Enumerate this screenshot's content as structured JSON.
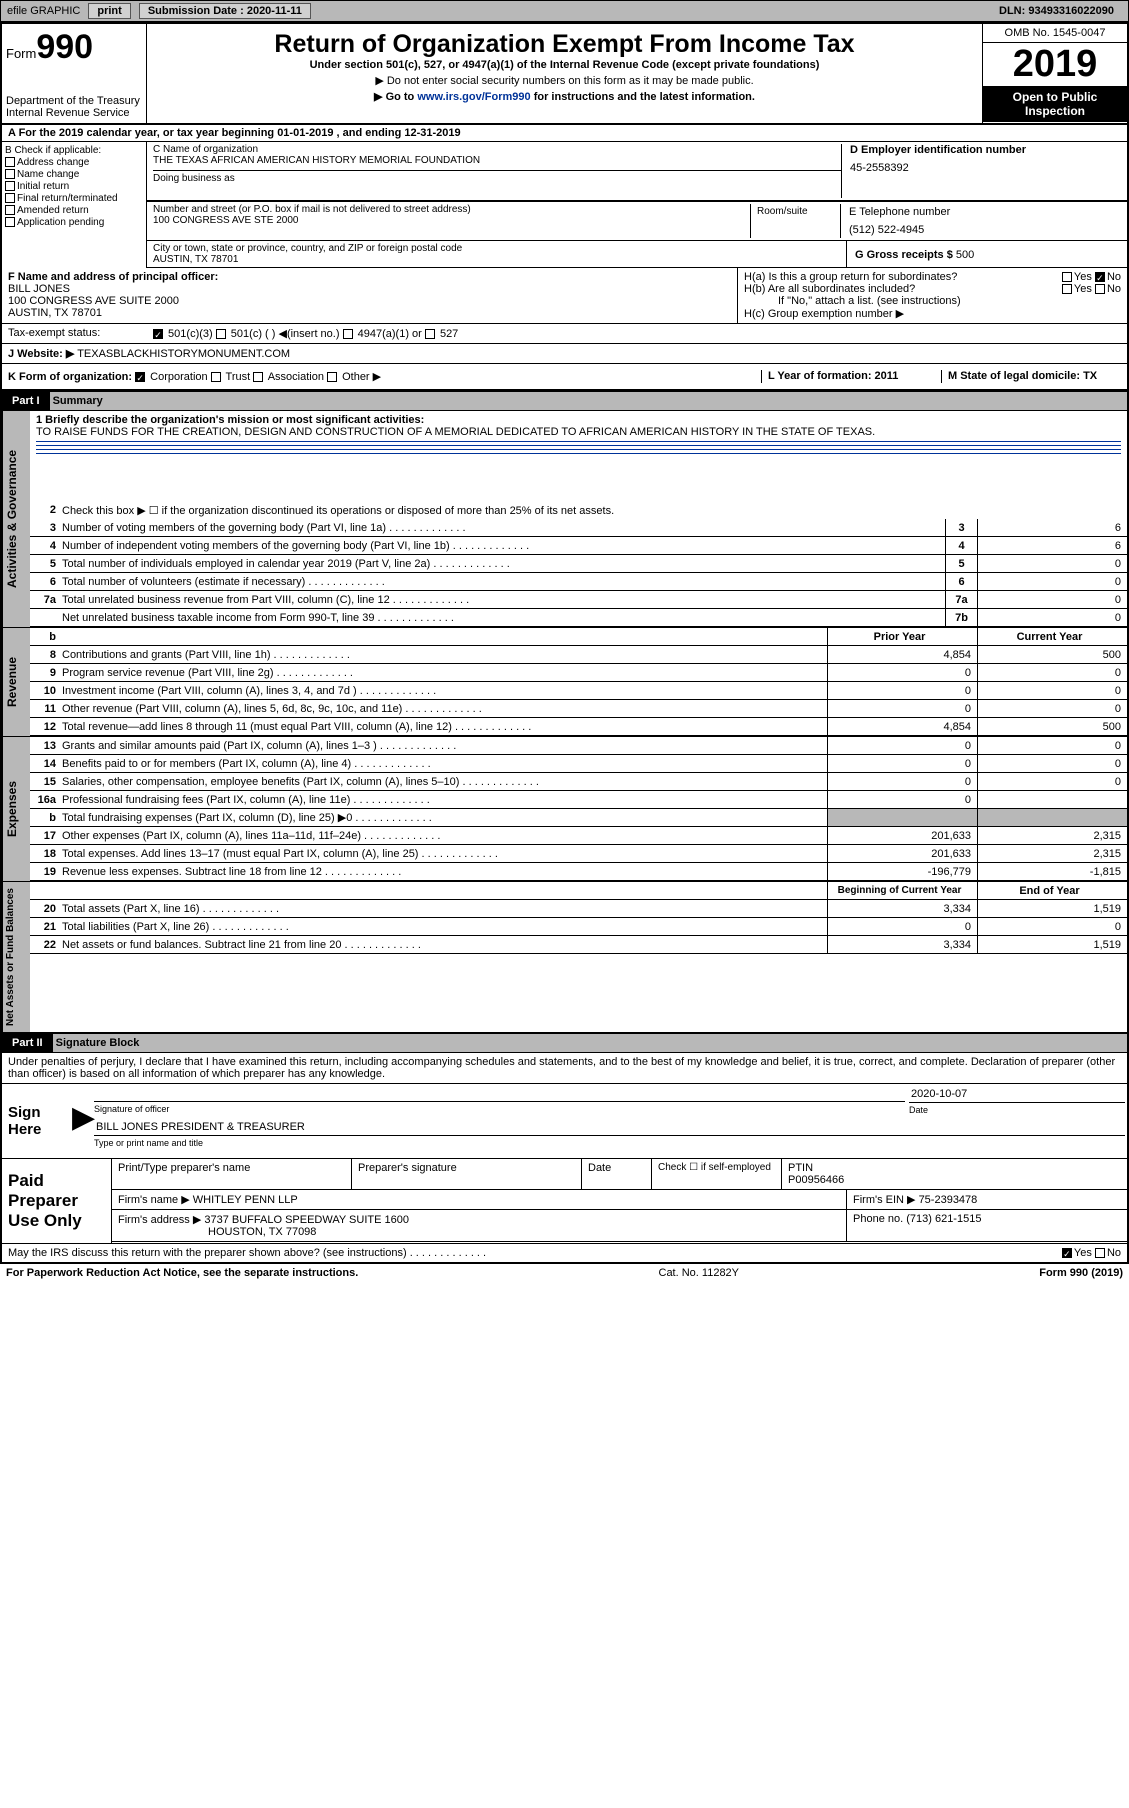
{
  "topbar": {
    "efile": "efile GRAPHIC",
    "print": "print",
    "subdate_label": "Submission Date : 2020-11-11",
    "dln": "DLN: 93493316022090"
  },
  "header": {
    "form_prefix": "Form",
    "form_num": "990",
    "dept": "Department of the Treasury\nInternal Revenue Service",
    "title": "Return of Organization Exempt From Income Tax",
    "subtitle": "Under section 501(c), 527, or 4947(a)(1) of the Internal Revenue Code (except private foundations)",
    "note1": "▶ Do not enter social security numbers on this form as it may be made public.",
    "note2_pre": "▶ Go to ",
    "note2_link": "www.irs.gov/Form990",
    "note2_post": " for instructions and the latest information.",
    "omb": "OMB No. 1545-0047",
    "year": "2019",
    "open": "Open to Public Inspection"
  },
  "line_a": "A For the 2019 calendar year, or tax year beginning 01-01-2019    , and ending 12-31-2019",
  "box_b": {
    "label": "B Check if applicable:",
    "items": [
      "Address change",
      "Name change",
      "Initial return",
      "Final return/terminated",
      "Amended return",
      "Application pending"
    ]
  },
  "box_c": {
    "name_label": "C Name of organization",
    "name": "THE TEXAS AFRICAN AMERICAN HISTORY MEMORIAL FOUNDATION",
    "dba_label": "Doing business as",
    "addr_label": "Number and street (or P.O. box if mail is not delivered to street address)",
    "addr": "100 CONGRESS AVE STE 2000",
    "room_label": "Room/suite",
    "city_label": "City or town, state or province, country, and ZIP or foreign postal code",
    "city": "AUSTIN, TX  78701"
  },
  "box_d": {
    "label": "D Employer identification number",
    "val": "45-2558392"
  },
  "box_e": {
    "label": "E Telephone number",
    "val": "(512) 522-4945"
  },
  "box_g": {
    "label": "G Gross receipts $",
    "val": "500"
  },
  "box_f": {
    "label": "F  Name and address of principal officer:",
    "name": "BILL JONES",
    "addr": "100 CONGRESS AVE SUITE 2000",
    "city": "AUSTIN, TX  78701"
  },
  "box_h": {
    "a": "H(a)  Is this a group return for subordinates?",
    "b": "H(b)  Are all subordinates included?",
    "b_note": "If \"No,\" attach a list. (see instructions)",
    "c": "H(c)  Group exemption number ▶"
  },
  "tax_status": "Tax-exempt status:",
  "website_label": "J     Website: ▶",
  "website": "TEXASBLACKHISTORYMONUMENT.COM",
  "row_k": "K Form of organization:",
  "row_l": "L Year of formation: 2011",
  "row_m": "M State of legal domicile: TX",
  "part1": {
    "hdr": "Part I",
    "title": "Summary"
  },
  "mission_label": "1  Briefly describe the organization's mission or most significant activities:",
  "mission": "TO RAISE FUNDS FOR THE CREATION, DESIGN AND CONSTRUCTION OF A MEMORIAL DEDICATED TO AFRICAN AMERICAN HISTORY IN THE STATE OF TEXAS.",
  "side_labels": {
    "ag": "Activities & Governance",
    "rev": "Revenue",
    "exp": "Expenses",
    "na": "Net Assets or Fund Balances"
  },
  "lines_gov": [
    {
      "n": "2",
      "t": "Check this box ▶ ☐  if the organization discontinued its operations or disposed of more than 25% of its net assets."
    },
    {
      "n": "3",
      "t": "Number of voting members of the governing body (Part VI, line 1a)",
      "b": "3",
      "v": "6"
    },
    {
      "n": "4",
      "t": "Number of independent voting members of the governing body (Part VI, line 1b)",
      "b": "4",
      "v": "6"
    },
    {
      "n": "5",
      "t": "Total number of individuals employed in calendar year 2019 (Part V, line 2a)",
      "b": "5",
      "v": "0"
    },
    {
      "n": "6",
      "t": "Total number of volunteers (estimate if necessary)",
      "b": "6",
      "v": "0"
    },
    {
      "n": "7a",
      "t": "Total unrelated business revenue from Part VIII, column (C), line 12",
      "b": "7a",
      "v": "0"
    },
    {
      "n": "",
      "t": "Net unrelated business taxable income from Form 990-T, line 39",
      "b": "7b",
      "v": "0"
    }
  ],
  "col_hdrs": {
    "prior": "Prior Year",
    "current": "Current Year"
  },
  "lines_rev": [
    {
      "n": "8",
      "t": "Contributions and grants (Part VIII, line 1h)",
      "p": "4,854",
      "c": "500"
    },
    {
      "n": "9",
      "t": "Program service revenue (Part VIII, line 2g)",
      "p": "0",
      "c": "0"
    },
    {
      "n": "10",
      "t": "Investment income (Part VIII, column (A), lines 3, 4, and 7d )",
      "p": "0",
      "c": "0"
    },
    {
      "n": "11",
      "t": "Other revenue (Part VIII, column (A), lines 5, 6d, 8c, 9c, 10c, and 11e)",
      "p": "0",
      "c": "0"
    },
    {
      "n": "12",
      "t": "Total revenue—add lines 8 through 11 (must equal Part VIII, column (A), line 12)",
      "p": "4,854",
      "c": "500"
    }
  ],
  "lines_exp": [
    {
      "n": "13",
      "t": "Grants and similar amounts paid (Part IX, column (A), lines 1–3 )",
      "p": "0",
      "c": "0"
    },
    {
      "n": "14",
      "t": "Benefits paid to or for members (Part IX, column (A), line 4)",
      "p": "0",
      "c": "0"
    },
    {
      "n": "15",
      "t": "Salaries, other compensation, employee benefits (Part IX, column (A), lines 5–10)",
      "p": "0",
      "c": "0"
    },
    {
      "n": "16a",
      "t": "Professional fundraising fees (Part IX, column (A), line 11e)",
      "p": "0",
      "c": ""
    },
    {
      "n": "b",
      "t": "Total fundraising expenses (Part IX, column (D), line 25) ▶0",
      "p": "",
      "c": "",
      "gray": true
    },
    {
      "n": "17",
      "t": "Other expenses (Part IX, column (A), lines 11a–11d, 11f–24e)",
      "p": "201,633",
      "c": "2,315"
    },
    {
      "n": "18",
      "t": "Total expenses. Add lines 13–17 (must equal Part IX, column (A), line 25)",
      "p": "201,633",
      "c": "2,315"
    },
    {
      "n": "19",
      "t": "Revenue less expenses. Subtract line 18 from line 12",
      "p": "-196,779",
      "c": "-1,815"
    }
  ],
  "col_hdrs2": {
    "begin": "Beginning of Current Year",
    "end": "End of Year"
  },
  "lines_na": [
    {
      "n": "20",
      "t": "Total assets (Part X, line 16)",
      "p": "3,334",
      "c": "1,519"
    },
    {
      "n": "21",
      "t": "Total liabilities (Part X, line 26)",
      "p": "0",
      "c": "0"
    },
    {
      "n": "22",
      "t": "Net assets or fund balances. Subtract line 21 from line 20",
      "p": "3,334",
      "c": "1,519"
    }
  ],
  "part2": {
    "hdr": "Part II",
    "title": "Signature Block"
  },
  "penalty": "Under penalties of perjury, I declare that I have examined this return, including accompanying schedules and statements, and to the best of my knowledge and belief, it is true, correct, and complete. Declaration of preparer (other than officer) is based on all information of which preparer has any knowledge.",
  "sign": {
    "here": "Sign Here",
    "sig_label": "Signature of officer",
    "date": "2020-10-07",
    "date_label": "Date",
    "name": "BILL JONES  PRESIDENT & TREASURER",
    "name_label": "Type or print name and title"
  },
  "paid": {
    "label": "Paid Preparer Use Only",
    "h1": "Print/Type preparer's name",
    "h2": "Preparer's signature",
    "h3": "Date",
    "h4_a": "Check ☐ if self-employed",
    "h4_b": "PTIN",
    "ptin": "P00956466",
    "firm_label": "Firm's name    ▶",
    "firm": "WHITLEY PENN LLP",
    "ein_label": "Firm's EIN ▶",
    "ein": "75-2393478",
    "addr_label": "Firm's address ▶",
    "addr": "3737 BUFFALO SPEEDWAY SUITE 1600",
    "addr2": "HOUSTON, TX  77098",
    "phone_label": "Phone no.",
    "phone": "(713) 621-1515"
  },
  "discuss": "May the IRS discuss this return with the preparer shown above? (see instructions)",
  "footer": {
    "left": "For Paperwork Reduction Act Notice, see the separate instructions.",
    "mid": "Cat. No. 11282Y",
    "right": "Form 990 (2019)"
  }
}
